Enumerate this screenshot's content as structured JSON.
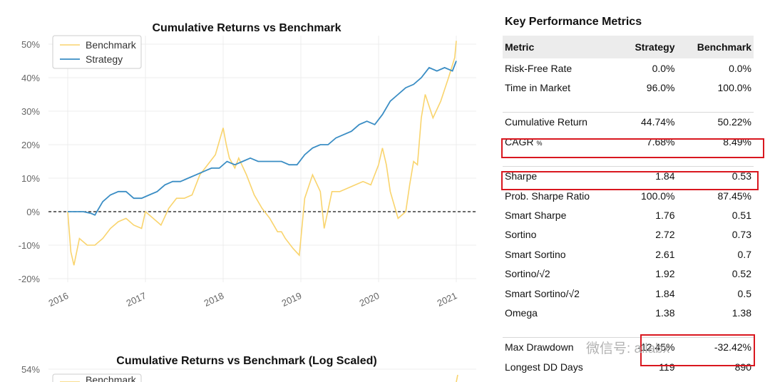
{
  "colors": {
    "benchmark": "#f9d46d",
    "strategy": "#3a8dc4",
    "highlight": "#d9171f"
  },
  "chart_data": [
    {
      "type": "line",
      "title": "Cumulative Returns vs Benchmark",
      "xlabel": "",
      "ylabel": "",
      "x_ticks": [
        "2016",
        "2017",
        "2018",
        "2019",
        "2020",
        "2021"
      ],
      "y_ticks": [
        "50%",
        "40%",
        "30%",
        "20%",
        "10%",
        "0%",
        "-10%",
        "-20%"
      ],
      "y_tick_values": [
        50,
        40,
        30,
        20,
        10,
        0,
        -10,
        -20
      ],
      "xlim": [
        2016.0,
        2021.0
      ],
      "ylim": [
        -20,
        50
      ],
      "legend": [
        "Benchmark",
        "Strategy"
      ],
      "legend_position": "top-left",
      "grid": true,
      "series": [
        {
          "name": "Benchmark",
          "x": [
            2016.0,
            2016.04,
            2016.08,
            2016.15,
            2016.25,
            2016.35,
            2016.45,
            2016.55,
            2016.65,
            2016.75,
            2016.85,
            2016.95,
            2017.0,
            2017.1,
            2017.2,
            2017.3,
            2017.4,
            2017.5,
            2017.6,
            2017.7,
            2017.8,
            2017.9,
            2018.0,
            2018.04,
            2018.08,
            2018.15,
            2018.2,
            2018.3,
            2018.4,
            2018.5,
            2018.6,
            2018.7,
            2018.75,
            2018.8,
            2018.9,
            2018.98,
            2019.05,
            2019.15,
            2019.25,
            2019.3,
            2019.4,
            2019.5,
            2019.6,
            2019.7,
            2019.8,
            2019.9,
            2020.0,
            2020.05,
            2020.1,
            2020.15,
            2020.25,
            2020.35,
            2020.4,
            2020.45,
            2020.5,
            2020.55,
            2020.6,
            2020.7,
            2020.8,
            2020.9,
            2020.98,
            2021.0
          ],
          "values": [
            0,
            -12,
            -16,
            -8,
            -10,
            -10,
            -8,
            -5,
            -3,
            -2,
            -4,
            -5,
            0,
            -2,
            -4,
            1,
            4,
            4,
            5,
            11,
            14,
            17,
            25,
            20,
            16,
            13,
            16,
            11,
            5,
            1,
            -2,
            -6,
            -6,
            -8,
            -11,
            -13,
            4,
            11,
            6,
            -5,
            6,
            6,
            7,
            8,
            9,
            8,
            14,
            19,
            14,
            6,
            -2,
            0,
            8,
            15,
            14,
            28,
            35,
            28,
            33,
            40,
            46,
            51
          ]
        },
        {
          "name": "Strategy",
          "x": [
            2016.0,
            2016.1,
            2016.2,
            2016.3,
            2016.35,
            2016.45,
            2016.55,
            2016.65,
            2016.75,
            2016.85,
            2016.95,
            2017.05,
            2017.15,
            2017.25,
            2017.35,
            2017.45,
            2017.55,
            2017.65,
            2017.75,
            2017.85,
            2017.95,
            2018.05,
            2018.15,
            2018.25,
            2018.35,
            2018.45,
            2018.55,
            2018.65,
            2018.75,
            2018.85,
            2018.95,
            2019.05,
            2019.15,
            2019.25,
            2019.35,
            2019.45,
            2019.55,
            2019.65,
            2019.75,
            2019.85,
            2019.95,
            2020.05,
            2020.15,
            2020.25,
            2020.35,
            2020.45,
            2020.55,
            2020.65,
            2020.75,
            2020.85,
            2020.95,
            2021.0
          ],
          "values": [
            0,
            0,
            0,
            -0.5,
            -1,
            3,
            5,
            6,
            6,
            4,
            4,
            5,
            6,
            8,
            9,
            9,
            10,
            11,
            12,
            13,
            13,
            15,
            14,
            15,
            16,
            15,
            15,
            15,
            15,
            14,
            14,
            17,
            19,
            20,
            20,
            22,
            23,
            24,
            26,
            27,
            26,
            29,
            33,
            35,
            37,
            38,
            40,
            43,
            42,
            43,
            42,
            45
          ]
        }
      ]
    },
    {
      "type": "line",
      "title": "Cumulative Returns vs Benchmark (Log Scaled)",
      "y_ticks": [
        "54%"
      ],
      "y_tick_values": [
        54
      ],
      "legend": [
        "Benchmark"
      ],
      "legend_position": "top-left"
    }
  ],
  "metrics": {
    "title": "Key Performance Metrics",
    "headers": [
      "Metric",
      "Strategy",
      "Benchmark"
    ],
    "groups": [
      [
        {
          "name": "Risk-Free Rate",
          "strategy": "0.0%",
          "benchmark": "0.0%"
        },
        {
          "name": "Time in Market",
          "strategy": "96.0%",
          "benchmark": "100.0%"
        }
      ],
      [
        {
          "name": "Cumulative Return",
          "strategy": "44.74%",
          "benchmark": "50.22%"
        },
        {
          "name": "CAGR",
          "unit": "%",
          "strategy": "7.68%",
          "benchmark": "8.49%"
        }
      ],
      [
        {
          "name": "Sharpe",
          "strategy": "1.84",
          "benchmark": "0.53"
        },
        {
          "name": "Prob. Sharpe Ratio",
          "strategy": "100.0%",
          "benchmark": "87.45%"
        },
        {
          "name": "Smart Sharpe",
          "strategy": "1.76",
          "benchmark": "0.51"
        },
        {
          "name": "Sortino",
          "strategy": "2.72",
          "benchmark": "0.73"
        },
        {
          "name": "Smart Sortino",
          "strategy": "2.61",
          "benchmark": "0.7"
        },
        {
          "name": "Sortino/√2",
          "strategy": "1.92",
          "benchmark": "0.52"
        },
        {
          "name": "Smart Sortino/√2",
          "strategy": "1.84",
          "benchmark": "0.5"
        },
        {
          "name": "Omega",
          "strategy": "1.38",
          "benchmark": "1.38"
        }
      ],
      [
        {
          "name": "Max Drawdown",
          "strategy": "-12.45%",
          "benchmark": "-32.42%"
        },
        {
          "name": "Longest DD Days",
          "strategy": "119",
          "benchmark": "890"
        }
      ]
    ]
  },
  "watermark": "微信号: ailabx"
}
